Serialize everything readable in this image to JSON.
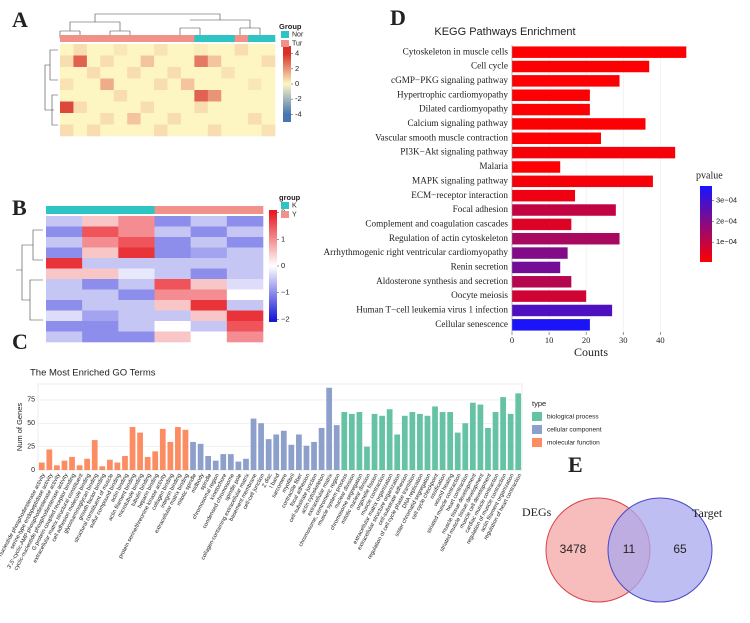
{
  "panel_labels": [
    "A",
    "B",
    "C",
    "D",
    "E"
  ],
  "chart_data": [
    {
      "type": "heatmap",
      "legend_title": "Group",
      "groups": [
        {
          "name": "Nor",
          "color": "#2ec4c4"
        },
        {
          "name": "Tur",
          "color": "#f0918a"
        }
      ],
      "column_groups": [
        1,
        1,
        1,
        1,
        1,
        1,
        1,
        1,
        1,
        1,
        0,
        0,
        0,
        1,
        0,
        0
      ],
      "colorscale": [
        {
          "value": -4,
          "color": "#4575b4"
        },
        {
          "value": 0,
          "color": "#fdf6c3"
        },
        {
          "value": 4,
          "color": "#d73027"
        }
      ],
      "clim": [
        -5,
        5
      ],
      "cticks": [
        4,
        2,
        0,
        {
          "value": -2,
          "label": "-2"
        },
        {
          "value": -4,
          "label": "-4"
        }
      ],
      "values": [
        [
          0,
          0.5,
          0,
          0,
          0.3,
          0,
          0,
          0.4,
          0,
          0,
          0.2,
          0,
          0,
          0.5,
          0,
          0
        ],
        [
          0.5,
          3,
          0,
          0.5,
          0,
          0,
          1,
          0,
          0,
          0,
          2.5,
          1,
          0,
          0,
          0,
          0.5
        ],
        [
          0,
          0,
          0.5,
          0,
          0,
          0.5,
          0,
          0,
          0.5,
          0,
          0,
          0,
          0.4,
          0,
          0,
          0
        ],
        [
          0.4,
          0,
          0,
          1.5,
          0,
          0,
          0,
          0.5,
          0,
          1,
          0,
          0,
          0,
          0,
          0.3,
          0
        ],
        [
          0,
          0,
          0,
          0,
          0.5,
          0,
          0,
          0,
          0,
          0,
          3,
          2,
          0,
          0,
          0,
          0
        ],
        [
          3.5,
          0.5,
          0,
          0,
          0,
          0,
          0.5,
          0,
          0,
          0,
          0.5,
          0,
          0,
          0,
          0,
          0
        ],
        [
          0,
          0,
          0,
          0.5,
          0,
          1,
          0,
          0,
          0.5,
          0,
          0,
          0,
          0,
          0,
          0.5,
          0
        ],
        [
          0.5,
          0,
          0.5,
          0,
          0,
          0,
          0,
          0.5,
          0,
          0,
          0,
          0.5,
          0,
          0,
          0,
          0.4
        ]
      ]
    },
    {
      "type": "heatmap",
      "legend_title": "group",
      "groups": [
        {
          "name": "K",
          "color": "#2ec4c4"
        },
        {
          "name": "Y",
          "color": "#f0918a"
        }
      ],
      "column_groups": [
        0,
        0,
        0,
        1,
        1,
        1
      ],
      "colorscale": [
        {
          "value": -2,
          "color": "#1a1ad6"
        },
        {
          "value": 0,
          "color": "#ffffff"
        },
        {
          "value": 2,
          "color": "#e81b23"
        }
      ],
      "clim": [
        -2.1,
        2.1
      ],
      "cticks": [
        2,
        1,
        0,
        {
          "value": -1,
          "label": "−1"
        },
        {
          "value": -2,
          "label": "−2"
        }
      ],
      "values": [
        [
          -0.5,
          0.5,
          1,
          -1,
          -0.5,
          -1
        ],
        [
          -1,
          1.5,
          1,
          -0.5,
          -1,
          -0.5
        ],
        [
          -0.5,
          1,
          1.5,
          -1,
          -0.5,
          -1
        ],
        [
          -1,
          0.5,
          1.8,
          -1,
          -0.8,
          -0.5
        ],
        [
          1.8,
          -0.5,
          -0.5,
          -0.5,
          -0.5,
          -0.5
        ],
        [
          0.5,
          0.5,
          -0.2,
          -0.5,
          -1,
          -0.5
        ],
        [
          -0.5,
          -1,
          -0.5,
          1.5,
          0.5,
          -0.3
        ],
        [
          -0.5,
          -0.5,
          -1,
          1,
          1,
          0
        ],
        [
          -1,
          -0.5,
          -0.5,
          0.5,
          1.8,
          -0.5
        ],
        [
          -0.3,
          -0.8,
          -0.5,
          -0.5,
          0.5,
          1.8
        ],
        [
          -1,
          -1,
          -0.5,
          0,
          -0.5,
          1.5
        ],
        [
          -0.5,
          -1,
          -1,
          0.5,
          0,
          1
        ]
      ]
    },
    {
      "type": "grouped_bar",
      "title": "The Most Enriched GO Terms",
      "y_label": "Num of Genes",
      "legend_title": "type",
      "ylim": [
        0,
        92
      ],
      "yticks": [
        0,
        25,
        50,
        75
      ],
      "series": [
        {
          "name": "biological process",
          "color": "#66c2a5",
          "categories": [
            "muscle system process",
            "nuclear division",
            "chromosome segregation",
            "mitotic nuclear division",
            "organelle fission",
            "muscle contraction",
            "extracellular matrix organization",
            "extracellular structure organization",
            "cell-substrate adhesion",
            "regulation of cell cycle phase transition",
            "DNA replication",
            "sister chromatid segregation",
            "cell cycle checkpoint",
            "ossification",
            "wound healing",
            "striated muscle contraction",
            "heart contraction",
            "muscle tissue development",
            "striated muscle tissue development",
            "muscle cell development",
            "cardiac muscle contraction",
            "regulation of muscle contraction",
            "actin filament organization",
            "regulation of heart contraction"
          ],
          "values": [
            62,
            60,
            62,
            25,
            60,
            58,
            65,
            38,
            58,
            62,
            60,
            58,
            68,
            62,
            62,
            40,
            50,
            72,
            70,
            45,
            62,
            78,
            60,
            82
          ]
        },
        {
          "name": "cellular component",
          "color": "#8da0cb",
          "categories": [
            "mitotic spindle",
            "midbody",
            "spindle",
            "chromosomal region",
            "kinetochore",
            "condensed chromosome",
            "spindle pole",
            "collagen-containing extracellular matrix",
            "basement membrane",
            "cell-cell junction",
            "Z disc",
            "I band",
            "sarcomere",
            "myofibril",
            "contractile fiber",
            "focal adhesion",
            "cell-substrate junction",
            "actin cytoskeleton",
            "extracellular matrix",
            "chromosome, centromeric region"
          ],
          "values": [
            30,
            28,
            15,
            10,
            17,
            17,
            9,
            12,
            55,
            50,
            33,
            38,
            42,
            27,
            38,
            26,
            30,
            45,
            88,
            48
          ]
        },
        {
          "name": "molecular function",
          "color": "#fc8d62",
          "categories": [
            "3',5'-cyclic-nucleotide phosphodiesterase activity",
            "serine-type endopeptidase activity",
            "3',5'-cyclic-AMP phosphodiesterase activity",
            "cyclic-nucleotide phosphodiesterase activity",
            "G protein-coupled receptor binding",
            "extracellular matrix structural constituent",
            "cell adhesion molecule binding",
            "glycosaminoglycan binding",
            "growth factor binding",
            "structural constituent of muscle",
            "sulfur compound binding",
            "actin binding",
            "actin filament binding",
            "microtubule binding",
            "tubulin binding",
            "heparin binding",
            "protein serine/threonine kinase activity",
            "collagen binding",
            "integrin binding",
            "extracellular matrix binding"
          ],
          "values": [
            8,
            22,
            5,
            10,
            14,
            5,
            12,
            32,
            4,
            11,
            8,
            15,
            46,
            40,
            14,
            20,
            44,
            30,
            46,
            43
          ]
        }
      ],
      "draw_order": [
        2,
        1,
        0
      ]
    },
    {
      "type": "hbar",
      "title": "KEGG Pathways Enrichment",
      "x_label": "Counts",
      "legend_title": "pvalue",
      "categories": [
        "Cytoskeleton in muscle cells",
        "Cell cycle",
        "cGMP−PKG signaling pathway",
        "Hypertrophic cardiomyopathy",
        "Dilated cardiomyopathy",
        "Calcium signaling pathway",
        "Vascular smooth muscle contraction",
        "PI3K−Akt signaling pathway",
        "Malaria",
        "MAPK signaling pathway",
        "ECM−receptor interaction",
        "Focal adhesion",
        "Complement and coagulation cascades",
        "Regulation of actin cytoskeleton",
        "Arrhythmogenic right ventricular cardiomyopathy",
        "Renin secretion",
        "Aldosterone synthesis and secretion",
        "Oocyte meiosis",
        "Human T−cell leukemia virus 1 infection",
        "Cellular senescence"
      ],
      "values": [
        47,
        37,
        29,
        21,
        21,
        36,
        24,
        44,
        13,
        38,
        17,
        28,
        16,
        29,
        15,
        13,
        16,
        20,
        27,
        21
      ],
      "pvalues": [
        1e-05,
        1e-05,
        1e-05,
        1e-05,
        1e-05,
        1e-05,
        1e-05,
        2e-05,
        1e-05,
        2e-05,
        3e-05,
        0.0001,
        6e-05,
        0.00014,
        0.0002,
        0.00022,
        0.00012,
        8e-05,
        0.00028,
        0.00036
      ],
      "xlim": [
        0,
        48
      ],
      "xticks": [
        0,
        10,
        20,
        30,
        40
      ],
      "clim": [
        5e-06,
        0.00037
      ],
      "colorscale": [
        {
          "value": 5e-06,
          "color": "#ff0000"
        },
        {
          "value": 0.00037,
          "color": "#1515ff"
        }
      ],
      "cticks": [
        {
          "value": 0.0003,
          "label": "3e−04"
        },
        {
          "value": 0.0002,
          "label": "2e−04"
        },
        {
          "value": 0.0001,
          "label": "1e−04"
        }
      ],
      "grid": true
    },
    {
      "type": "venn",
      "sets": [
        {
          "name": "DEGs",
          "value": 3478,
          "color": "#f4a6a6",
          "edge": "#d9434a"
        },
        {
          "name": "Target",
          "value": 65,
          "color": "#aaa8ee",
          "edge": "#4a46c8"
        }
      ],
      "intersection": 11
    }
  ]
}
